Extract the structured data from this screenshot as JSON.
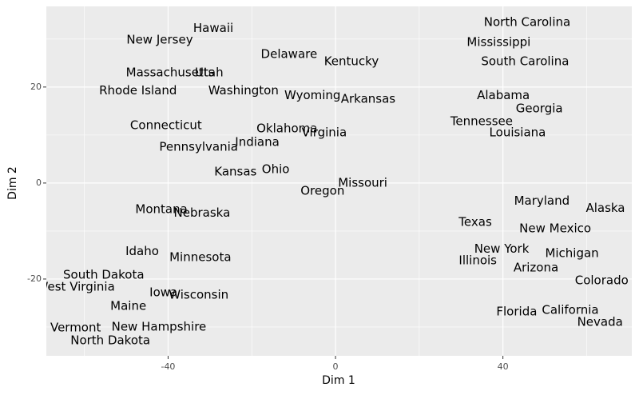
{
  "chart_data": {
    "type": "scatter",
    "xlabel": "Dim 1",
    "ylabel": "Dim 2",
    "labels": [
      "North Carolina",
      "Mississippi",
      "South Carolina",
      "Alabama",
      "Georgia",
      "Tennessee",
      "Louisiana",
      "Maryland",
      "Alaska",
      "Texas",
      "New Mexico",
      "New York",
      "Illinois",
      "Michigan",
      "Arizona",
      "Colorado",
      "Florida",
      "California",
      "Nevada",
      "Hawaii",
      "New Jersey",
      "Massachusetts",
      "Utah",
      "Delaware",
      "Kentucky",
      "Rhode Island",
      "Washington",
      "Wyoming",
      "Arkansas",
      "Connecticut",
      "Oklahoma",
      "Virginia",
      "Indiana",
      "Pennsylvania",
      "Kansas",
      "Ohio",
      "Missouri",
      "Oregon",
      "Montana",
      "Nebraska",
      "Idaho",
      "Minnesota",
      "South Dakota",
      "West Virginia",
      "Iowa",
      "Wisconsin",
      "Maine",
      "Vermont",
      "New Hampshire",
      "North Dakota"
    ],
    "x": [
      45.8,
      39.0,
      45.3,
      40.1,
      48.7,
      34.9,
      43.5,
      49.3,
      64.5,
      33.4,
      52.5,
      39.7,
      34.0,
      56.5,
      47.9,
      63.6,
      43.3,
      56.1,
      63.2,
      -29.2,
      -42.0,
      -39.5,
      -30.2,
      -11.1,
      3.8,
      -47.2,
      -22.0,
      -5.5,
      7.8,
      -40.5,
      -11.6,
      -2.7,
      -18.7,
      -32.7,
      -23.9,
      -14.3,
      6.5,
      -3.1,
      -41.6,
      -31.9,
      -46.2,
      -32.3,
      -55.4,
      -62.1,
      -41.1,
      -32.7,
      -49.5,
      -62.1,
      -42.2,
      -53.8
    ],
    "values": [
      33.5,
      29.3,
      25.3,
      18.2,
      15.5,
      12.8,
      10.5,
      -3.8,
      -5.3,
      -8.2,
      -9.5,
      -13.8,
      -16.2,
      -14.7,
      -17.7,
      -20.3,
      -26.8,
      -26.5,
      -29.0,
      32.2,
      29.8,
      23.0,
      23.0,
      26.8,
      25.3,
      19.2,
      19.2,
      18.2,
      17.5,
      12.0,
      11.3,
      10.5,
      8.5,
      7.5,
      2.3,
      2.8,
      0.0,
      -1.7,
      -5.5,
      -6.3,
      -14.3,
      -15.5,
      -19.2,
      -21.7,
      -22.8,
      -23.3,
      -25.7,
      -30.2,
      -30.0,
      -32.8
    ],
    "xlim": [
      -69.1,
      70.8
    ],
    "ylim": [
      -36,
      36.8
    ],
    "xticks": [
      -40,
      0,
      40
    ],
    "yticks": [
      -20,
      0,
      20
    ],
    "x_minor_ticks": [
      -60,
      -20,
      20,
      60
    ],
    "y_minor_ticks": [
      -30,
      -10,
      10,
      30
    ],
    "grid": true,
    "panel_color": "#ebebeb",
    "color": "#000000"
  }
}
